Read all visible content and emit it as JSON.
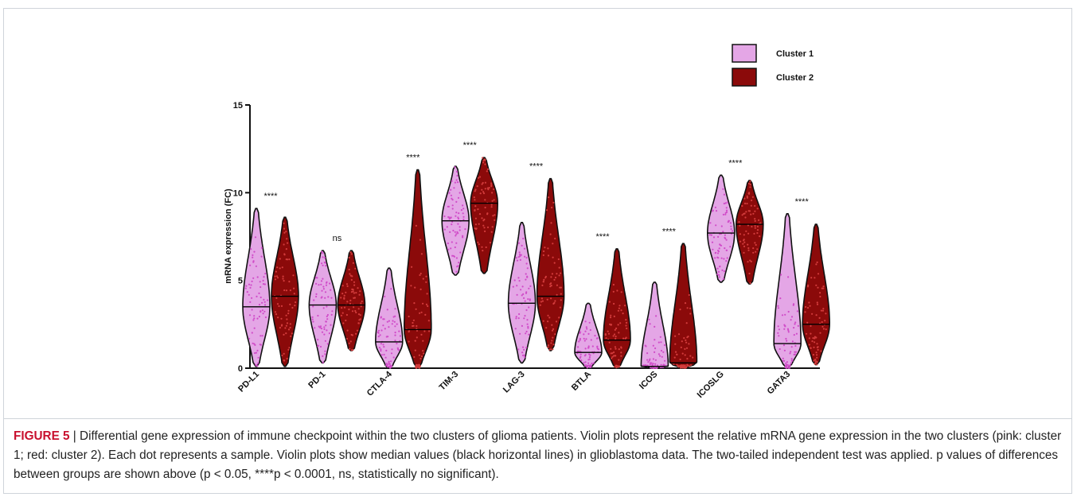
{
  "figure": {
    "label": "FIGURE 5",
    "separator": " | ",
    "caption": "Differential gene expression of immune checkpoint within the two clusters of glioma patients. Violin plots represent the relative mRNA gene expression in the two clusters (pink: cluster 1; red: cluster 2). Each dot represents a sample. Violin plots show median values (black horizontal lines) in glioblastoma data. The two-tailed independent test was applied. p values of differences between groups are shown above (p < 0.05, ****p < 0.0001, ns, statistically no significant)."
  },
  "colors": {
    "cluster1": "#e4a6e6",
    "cluster1_dots": "#d04cc8",
    "cluster2": "#8b0a0a",
    "cluster2_dots": "#d23c3c",
    "outline": "#111111",
    "caption_label": "#c8102e"
  },
  "chart_data": {
    "type": "violin",
    "title": "",
    "xlabel": "",
    "ylabel": "mRNA expression (FC)",
    "ylim": [
      0,
      15
    ],
    "yticks": [
      "0",
      "5",
      "10",
      "15"
    ],
    "legend_position": "top-right",
    "categories": [
      "PD-L1",
      "PD-1",
      "CTLA-4",
      "TIM-3",
      "LAG-3",
      "BTLA",
      "ICOS",
      "ICOSLG",
      "GATA3"
    ],
    "significance": [
      "****",
      "ns",
      "****",
      "****",
      "****",
      "****",
      "****",
      "****",
      "****"
    ],
    "series": [
      {
        "name": "Cluster 1",
        "min": [
          0.1,
          0.3,
          0.0,
          5.3,
          0.3,
          0.0,
          0.0,
          4.9,
          0.0
        ],
        "max": [
          9.1,
          6.7,
          5.7,
          11.5,
          8.3,
          3.7,
          4.9,
          11.0,
          8.8
        ],
        "median": [
          3.5,
          3.6,
          1.5,
          8.4,
          3.7,
          0.9,
          0.1,
          7.7,
          1.4
        ]
      },
      {
        "name": "Cluster 2",
        "min": [
          0.1,
          1.0,
          0.0,
          5.4,
          1.0,
          0.0,
          0.0,
          4.8,
          0.2
        ],
        "max": [
          8.6,
          6.7,
          11.3,
          12.0,
          10.8,
          6.8,
          7.1,
          10.7,
          8.2
        ],
        "median": [
          4.1,
          3.6,
          2.2,
          9.4,
          4.1,
          1.6,
          0.3,
          8.2,
          2.5
        ]
      }
    ]
  }
}
